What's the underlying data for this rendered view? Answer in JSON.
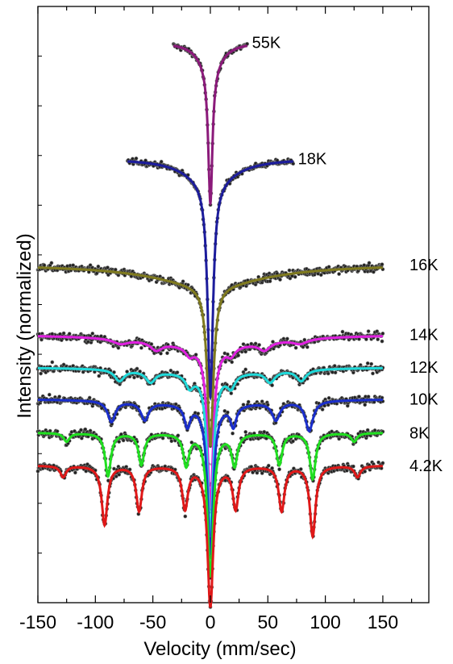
{
  "chart_data": {
    "type": "line",
    "title": "",
    "xlabel": "Velocity (mm/sec)",
    "ylabel": "Intensity (normalized)",
    "xlim": [
      -150,
      190
    ],
    "xticks": [
      "-150",
      "-100",
      "-50",
      "0",
      "50",
      "100",
      "150"
    ],
    "series": [
      {
        "name": "55K",
        "color": "#8b1a7a",
        "xrange": [
          -32,
          32
        ],
        "baseline": 0.94,
        "depth": 0.23,
        "lines": [
          {
            "v": 0,
            "w": 2.2,
            "a": 1
          }
        ],
        "broad": 0.04,
        "broad_w": 12
      },
      {
        "name": "18K",
        "color": "#1c1c9c",
        "xrange": [
          -72,
          72
        ],
        "baseline": 0.745,
        "depth": 0.36,
        "lines": [
          {
            "v": 0,
            "w": 2.8,
            "a": 1
          }
        ],
        "broad": 0.04,
        "broad_w": 25
      },
      {
        "name": "16K",
        "color": "#7f7a1e",
        "xrange": [
          -150,
          150
        ],
        "baseline": 0.567,
        "depth": 0.27,
        "lines": [
          {
            "v": 0,
            "w": 3.2,
            "a": 1
          }
        ],
        "broad": 0.035,
        "broad_w": 60
      },
      {
        "name": "14K",
        "color": "#e020e0",
        "xrange": [
          -150,
          150
        ],
        "baseline": 0.45,
        "depth": 0.27,
        "lines": [
          {
            "v": 0,
            "w": 3,
            "a": 1
          },
          {
            "v": -47,
            "w": 6,
            "a": 0.05
          },
          {
            "v": 47,
            "w": 6,
            "a": 0.05
          },
          {
            "v": -18,
            "w": 4,
            "a": 0.05
          },
          {
            "v": 18,
            "w": 4,
            "a": 0.05
          },
          {
            "v": 78,
            "w": 8,
            "a": 0.03
          },
          {
            "v": -78,
            "w": 8,
            "a": 0.03
          }
        ],
        "broad": 0.02,
        "broad_w": 60
      },
      {
        "name": "12K",
        "color": "#20dada",
        "xrange": [
          -150,
          150
        ],
        "baseline": 0.395,
        "depth": 0.27,
        "lines": [
          {
            "v": 0,
            "w": 3,
            "a": 1
          },
          {
            "v": -79,
            "w": 5,
            "a": 0.07
          },
          {
            "v": -52,
            "w": 5,
            "a": 0.07
          },
          {
            "v": 52,
            "w": 5,
            "a": 0.07
          },
          {
            "v": 79,
            "w": 5,
            "a": 0.07
          },
          {
            "v": -18,
            "w": 4,
            "a": 0.08
          },
          {
            "v": 18,
            "w": 4,
            "a": 0.08
          }
        ],
        "broad": 0.01,
        "broad_w": 60
      },
      {
        "name": "10K",
        "color": "#1a2ecc",
        "xrange": [
          -150,
          150
        ],
        "baseline": 0.342,
        "depth": 0.25,
        "lines": [
          {
            "v": 0,
            "w": 3,
            "a": 1
          },
          {
            "v": -86,
            "w": 4,
            "a": 0.14
          },
          {
            "v": -57,
            "w": 4,
            "a": 0.12
          },
          {
            "v": 57,
            "w": 4,
            "a": 0.12
          },
          {
            "v": 86,
            "w": 4,
            "a": 0.2
          },
          {
            "v": -20,
            "w": 3,
            "a": 0.14
          },
          {
            "v": 20,
            "w": 3,
            "a": 0.14
          }
        ],
        "broad": 0.01,
        "broad_w": 60
      },
      {
        "name": "8K",
        "color": "#20e020",
        "xrange": [
          -150,
          150
        ],
        "baseline": 0.285,
        "depth": 0.24,
        "lines": [
          {
            "v": 0,
            "w": 3,
            "a": 1
          },
          {
            "v": -89,
            "w": 3,
            "a": 0.3
          },
          {
            "v": -60,
            "w": 3,
            "a": 0.22
          },
          {
            "v": 60,
            "w": 3,
            "a": 0.22
          },
          {
            "v": 89,
            "w": 3,
            "a": 0.32
          },
          {
            "v": -21,
            "w": 3,
            "a": 0.22
          },
          {
            "v": 21,
            "w": 3,
            "a": 0.22
          },
          {
            "v": -125,
            "w": 3,
            "a": 0.06
          },
          {
            "v": 125,
            "w": 3,
            "a": 0.06
          }
        ],
        "broad": 0.0,
        "broad_w": 60
      },
      {
        "name": "4.2K",
        "color": "#e01818",
        "xrange": [
          -150,
          150
        ],
        "baseline": 0.23,
        "depth": 0.235,
        "lines": [
          {
            "v": 0,
            "w": 3,
            "a": 1
          },
          {
            "v": -92,
            "w": 3,
            "a": 0.42
          },
          {
            "v": -62,
            "w": 3,
            "a": 0.32
          },
          {
            "v": 62,
            "w": 3,
            "a": 0.32
          },
          {
            "v": 89,
            "w": 3,
            "a": 0.5
          },
          {
            "v": -22,
            "w": 3,
            "a": 0.3
          },
          {
            "v": 22,
            "w": 3,
            "a": 0.3
          },
          {
            "v": -128,
            "w": 3,
            "a": 0.08
          },
          {
            "v": 128,
            "w": 3,
            "a": 0.08
          }
        ],
        "broad": 0.0,
        "broad_w": 60
      }
    ],
    "grid": false,
    "legend": "none"
  }
}
